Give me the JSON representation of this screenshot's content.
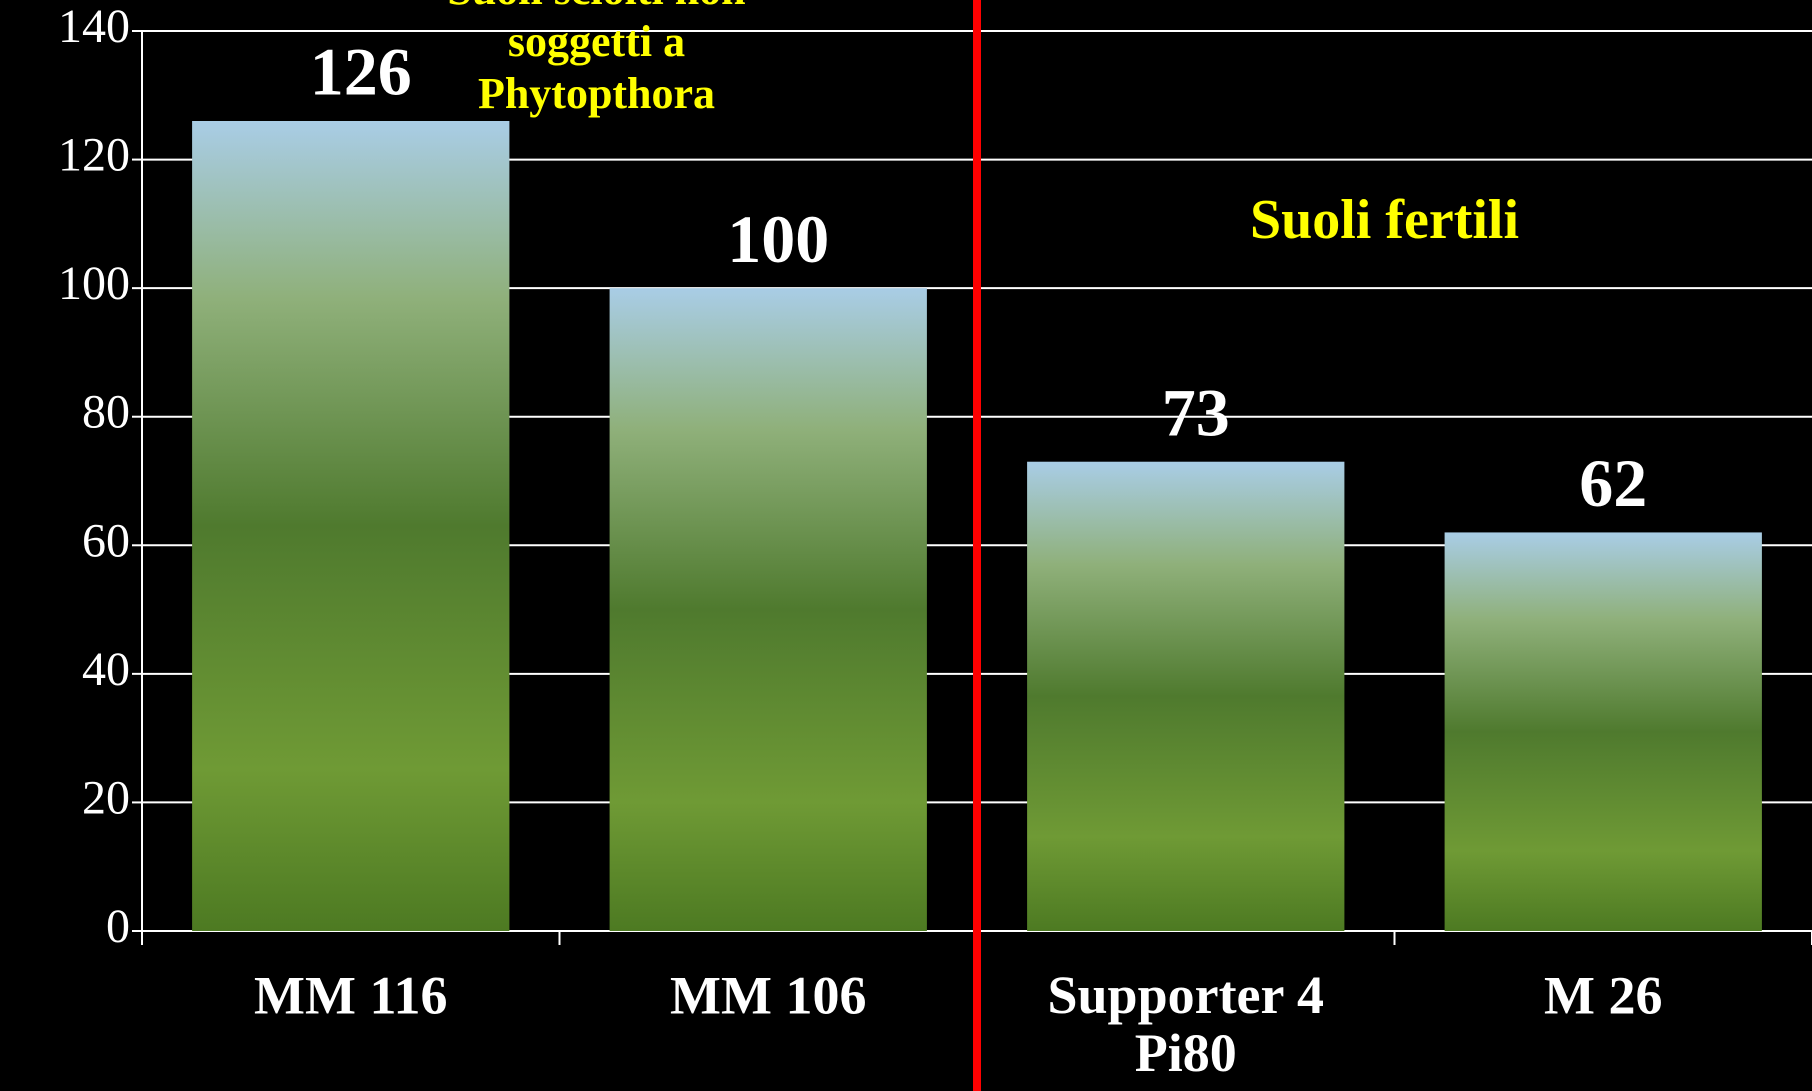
{
  "chart_data": {
    "type": "bar",
    "categories": [
      "MM 116",
      "MM 106",
      "Supporter 4\nPi80",
      "M 26"
    ],
    "values": [
      126,
      100,
      73,
      62
    ],
    "ylim": [
      0,
      140
    ],
    "yticks": [
      0,
      20,
      40,
      60,
      80,
      100,
      120,
      140
    ],
    "grid": true,
    "annotations": [
      {
        "lines": [
          "Suoli sciolti non",
          "soggetti a",
          "Phytopthora"
        ],
        "color": "#ffff00"
      },
      {
        "lines": [
          "Suoli fertili"
        ],
        "color": "#ffff00"
      }
    ],
    "divider_color": "#ff0000"
  }
}
